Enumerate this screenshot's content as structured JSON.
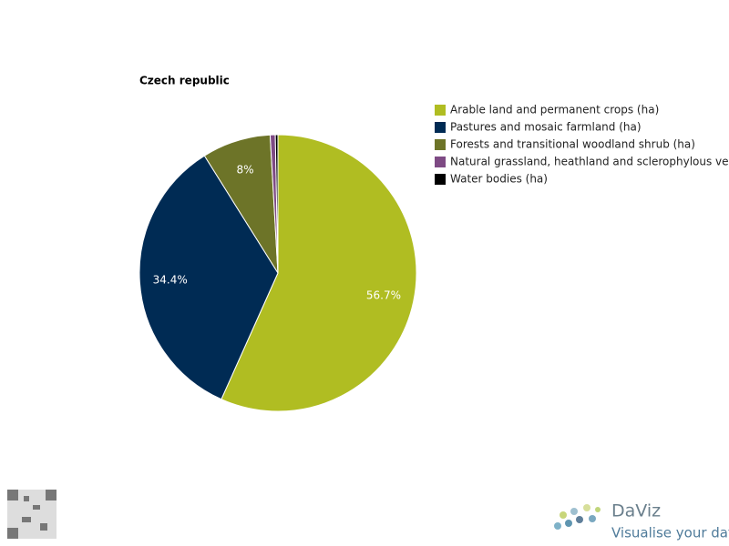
{
  "chart_data": {
    "type": "pie",
    "title": "Czech republic",
    "categories": [
      "Arable land and permanent crops (ha)",
      "Pastures and mosaic farmland (ha)",
      "Forests and transitional woodland shrub (ha)",
      "Natural grassland, heathland and sclerophylous vegetation (ha)",
      "Water bodies (ha)"
    ],
    "values": [
      56.7,
      34.4,
      8,
      0.6,
      0.3
    ],
    "value_labels": [
      "56.7%",
      "34.4%",
      "8%",
      null,
      null
    ],
    "colors": [
      "#b0bd22",
      "#002b54",
      "#6d7428",
      "#7e4a84",
      "#000000"
    ],
    "legend": "right"
  },
  "footer": {
    "brand": "DaViz",
    "tagline": "Visualise your data"
  }
}
